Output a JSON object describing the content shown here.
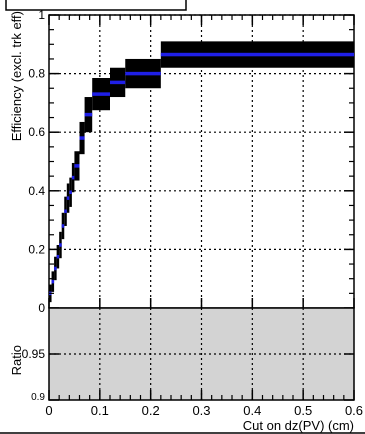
{
  "chart_data": [
    {
      "type": "line",
      "ylabel": "Efficiency (excl. trk eff)",
      "ylim": [
        0,
        1.0
      ],
      "xlim": [
        0,
        0.6
      ],
      "grid": true,
      "yticks": [
        "0",
        "0.2",
        "0.4",
        "0.6",
        "0.8",
        "1"
      ],
      "series": [
        {
          "bins": [
            {
              "x0": 0.0,
              "x1": 0.005,
              "y": 0.05,
              "err": 0.03
            },
            {
              "x0": 0.005,
              "x1": 0.01,
              "y": 0.09,
              "err": 0.035
            },
            {
              "x0": 0.01,
              "x1": 0.015,
              "y": 0.135,
              "err": 0.04
            },
            {
              "x0": 0.015,
              "x1": 0.02,
              "y": 0.175,
              "err": 0.04
            },
            {
              "x0": 0.02,
              "x1": 0.025,
              "y": 0.215,
              "err": 0.045
            },
            {
              "x0": 0.025,
              "x1": 0.03,
              "y": 0.28,
              "err": 0.045
            },
            {
              "x0": 0.03,
              "x1": 0.035,
              "y": 0.33,
              "err": 0.05
            },
            {
              "x0": 0.035,
              "x1": 0.04,
              "y": 0.375,
              "err": 0.05
            },
            {
              "x0": 0.04,
              "x1": 0.045,
              "y": 0.395,
              "err": 0.05
            },
            {
              "x0": 0.045,
              "x1": 0.05,
              "y": 0.445,
              "err": 0.05
            },
            {
              "x0": 0.05,
              "x1": 0.06,
              "y": 0.485,
              "err": 0.05
            },
            {
              "x0": 0.06,
              "x1": 0.07,
              "y": 0.58,
              "err": 0.055
            },
            {
              "x0": 0.07,
              "x1": 0.085,
              "y": 0.66,
              "err": 0.06
            },
            {
              "x0": 0.085,
              "x1": 0.12,
              "y": 0.73,
              "err": 0.055
            },
            {
              "x0": 0.12,
              "x1": 0.15,
              "y": 0.77,
              "err": 0.05
            },
            {
              "x0": 0.15,
              "x1": 0.22,
              "y": 0.8,
              "err": 0.05
            },
            {
              "x0": 0.22,
              "x1": 0.6,
              "y": 0.865,
              "err": 0.045
            }
          ]
        }
      ]
    },
    {
      "type": "area",
      "ylabel": "Ratio",
      "xlabel": "Cut on dz(PV) (cm)",
      "xlim": [
        0,
        0.6
      ],
      "ylim": [
        0.9,
        1.0
      ],
      "grid": true,
      "xticks": [
        "0",
        "0.1",
        "0.2",
        "0.3",
        "0.4",
        "0.5",
        "0.6"
      ],
      "yticks": [
        "0.9",
        "0.95"
      ],
      "band": {
        "y0": 0.9,
        "y1": 1.0,
        "color": "#d3d3d3"
      }
    }
  ]
}
